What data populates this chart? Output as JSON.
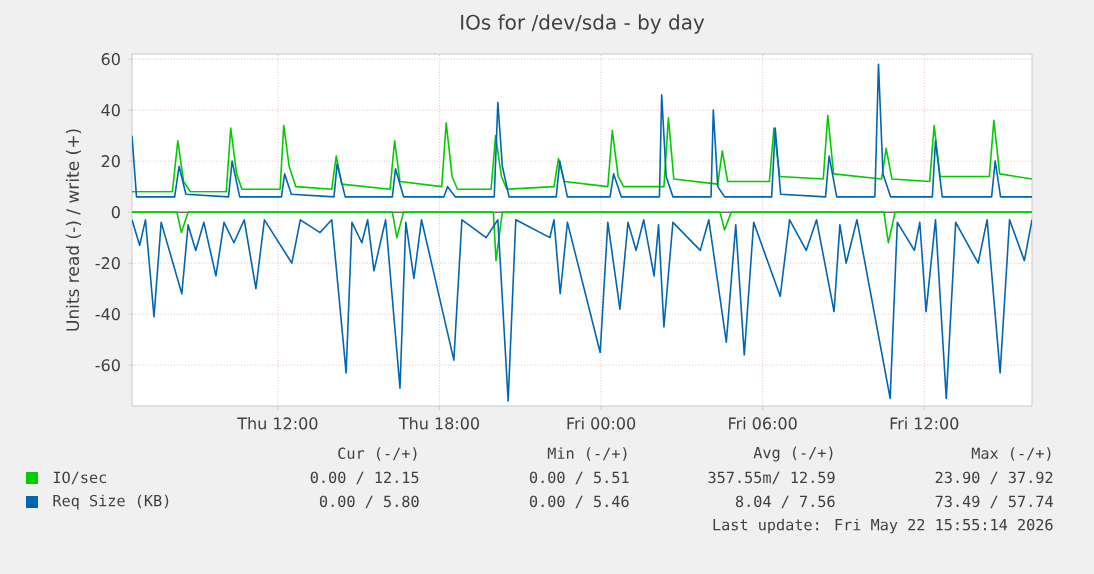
{
  "chart_data": {
    "type": "line",
    "title": "IOs for /dev/sda - by day",
    "ylabel": "Units read (-) / write (+)",
    "xlim": [
      "2026-05-21T06:35",
      "2026-05-22T16:00"
    ],
    "xticks": [
      {
        "value": "2026-05-21T12:00",
        "label": "Thu 12:00"
      },
      {
        "value": "2026-05-21T18:00",
        "label": "Thu 18:00"
      },
      {
        "value": "2026-05-22T00:00",
        "label": "Fri 00:00"
      },
      {
        "value": "2026-05-22T06:00",
        "label": "Fri 06:00"
      },
      {
        "value": "2026-05-22T12:00",
        "label": "Fri 12:00"
      }
    ],
    "ylim": [
      -76,
      62
    ],
    "yticks": [
      -60,
      -40,
      -20,
      0,
      20,
      40,
      60
    ],
    "grid": true,
    "legend": "bottom",
    "ref_lines": [
      {
        "axis": "y",
        "value": 0,
        "color": "#000000"
      }
    ],
    "series": [
      {
        "name": "IO/sec",
        "color": "#00cc00",
        "x": [
          "2026-05-21T06:35",
          "2026-05-21T08:05",
          "2026-05-21T08:17",
          "2026-05-21T08:30",
          "2026-05-21T08:45",
          "2026-05-21T10:05",
          "2026-05-21T10:15",
          "2026-05-21T10:28",
          "2026-05-21T10:40",
          "2026-05-21T12:05",
          "2026-05-21T12:13",
          "2026-05-21T12:25",
          "2026-05-21T12:40",
          "2026-05-21T14:00",
          "2026-05-21T14:10",
          "2026-05-21T14:22",
          "2026-05-21T16:10",
          "2026-05-21T16:20",
          "2026-05-21T16:32",
          "2026-05-21T18:05",
          "2026-05-21T18:15",
          "2026-05-21T18:28",
          "2026-05-21T18:40",
          "2026-05-21T19:55",
          "2026-05-21T20:05",
          "2026-05-21T20:18",
          "2026-05-21T20:30",
          "2026-05-21T22:15",
          "2026-05-21T22:25",
          "2026-05-21T22:38",
          "2026-05-22T00:15",
          "2026-05-22T00:25",
          "2026-05-22T00:38",
          "2026-05-22T00:50",
          "2026-05-22T02:20",
          "2026-05-22T02:30",
          "2026-05-22T02:42",
          "2026-05-22T04:20",
          "2026-05-22T04:30",
          "2026-05-22T04:42",
          "2026-05-22T06:15",
          "2026-05-22T06:25",
          "2026-05-22T06:38",
          "2026-05-22T08:15",
          "2026-05-22T08:25",
          "2026-05-22T08:38",
          "2026-05-22T10:25",
          "2026-05-22T10:35",
          "2026-05-22T10:48",
          "2026-05-22T12:12",
          "2026-05-22T12:22",
          "2026-05-22T12:35",
          "2026-05-22T14:25",
          "2026-05-22T14:35",
          "2026-05-22T14:48",
          "2026-05-22T16:00"
        ],
        "values": [
          8,
          8,
          28,
          12,
          8,
          8,
          33,
          15,
          9,
          9,
          34,
          18,
          10,
          9,
          22,
          11,
          9,
          28,
          12,
          10,
          35,
          14,
          9,
          9,
          30,
          14,
          9,
          10,
          21,
          12,
          10,
          32,
          14,
          10,
          10,
          37,
          13,
          11,
          24,
          12,
          12,
          33,
          14,
          13,
          38,
          15,
          13,
          25,
          13,
          12,
          34,
          14,
          14,
          36,
          15,
          13
        ]
      },
      {
        "color": "#00cc00",
        "x": [
          "2026-05-21T06:35",
          "2026-05-21T08:15",
          "2026-05-21T08:25",
          "2026-05-21T08:40",
          "2026-05-21T16:15",
          "2026-05-21T16:25",
          "2026-05-21T16:40",
          "2026-05-21T20:00",
          "2026-05-21T20:06",
          "2026-05-21T20:20",
          "2026-05-22T04:25",
          "2026-05-22T04:35",
          "2026-05-22T04:50",
          "2026-05-22T10:30",
          "2026-05-22T10:40",
          "2026-05-22T10:55",
          "2026-05-22T16:00"
        ],
        "values": [
          0,
          0,
          -8,
          0,
          0,
          -10,
          0,
          0,
          -19,
          0,
          0,
          -7,
          0,
          0,
          -12,
          0,
          0
        ]
      },
      {
        "name": "Req Size (KB)",
        "color": "#0066b3",
        "x": [
          "2026-05-21T06:35",
          "2026-05-21T06:45",
          "2026-05-21T08:10",
          "2026-05-21T08:20",
          "2026-05-21T08:35",
          "2026-05-21T10:10",
          "2026-05-21T10:18",
          "2026-05-21T10:35",
          "2026-05-21T12:08",
          "2026-05-21T12:15",
          "2026-05-21T12:30",
          "2026-05-21T14:05",
          "2026-05-21T14:12",
          "2026-05-21T14:30",
          "2026-05-21T16:15",
          "2026-05-21T16:22",
          "2026-05-21T16:40",
          "2026-05-21T18:10",
          "2026-05-21T18:18",
          "2026-05-21T18:35",
          "2026-05-21T20:02",
          "2026-05-21T20:10",
          "2026-05-21T20:20",
          "2026-05-21T20:35",
          "2026-05-21T22:20",
          "2026-05-21T22:28",
          "2026-05-21T22:45",
          "2026-05-22T00:20",
          "2026-05-22T00:28",
          "2026-05-22T00:45",
          "2026-05-22T02:10",
          "2026-05-22T02:15",
          "2026-05-22T02:25",
          "2026-05-22T02:40",
          "2026-05-22T04:05",
          "2026-05-22T04:10",
          "2026-05-22T04:20",
          "2026-05-22T04:35",
          "2026-05-22T06:20",
          "2026-05-22T06:28",
          "2026-05-22T06:40",
          "2026-05-22T08:20",
          "2026-05-22T08:28",
          "2026-05-22T08:45",
          "2026-05-22T10:10",
          "2026-05-22T10:18",
          "2026-05-22T10:28",
          "2026-05-22T10:45",
          "2026-05-22T12:18",
          "2026-05-22T12:25",
          "2026-05-22T12:40",
          "2026-05-22T14:30",
          "2026-05-22T14:38",
          "2026-05-22T14:50",
          "2026-05-22T16:00"
        ],
        "values": [
          30,
          6,
          6,
          18,
          7,
          6,
          20,
          6,
          6,
          15,
          7,
          6,
          19,
          6,
          6,
          17,
          6,
          6,
          10,
          6,
          6,
          43,
          18,
          6,
          6,
          20,
          6,
          6,
          15,
          6,
          6,
          46,
          14,
          6,
          6,
          40,
          10,
          6,
          6,
          33,
          7,
          6,
          22,
          6,
          6,
          58,
          15,
          6,
          6,
          28,
          6,
          6,
          20,
          6,
          6
        ]
      },
      {
        "color": "#0066b3",
        "x": [
          "2026-05-21T06:35",
          "2026-05-21T06:52",
          "2026-05-21T07:05",
          "2026-05-21T07:24",
          "2026-05-21T07:40",
          "2026-05-21T08:26",
          "2026-05-21T08:40",
          "2026-05-21T08:57",
          "2026-05-21T09:15",
          "2026-05-21T09:42",
          "2026-05-21T10:00",
          "2026-05-21T10:22",
          "2026-05-21T10:45",
          "2026-05-21T11:11",
          "2026-05-21T11:30",
          "2026-05-21T12:31",
          "2026-05-21T12:50",
          "2026-05-21T13:34",
          "2026-05-21T14:00",
          "2026-05-21T14:32",
          "2026-05-21T14:45",
          "2026-05-21T15:07",
          "2026-05-21T15:20",
          "2026-05-21T15:34",
          "2026-05-21T16:00",
          "2026-05-21T16:32",
          "2026-05-21T16:45",
          "2026-05-21T17:03",
          "2026-05-21T17:20",
          "2026-05-21T18:32",
          "2026-05-21T18:50",
          "2026-05-21T19:44",
          "2026-05-21T20:10",
          "2026-05-21T20:33",
          "2026-05-21T20:50",
          "2026-05-21T22:06",
          "2026-05-21T22:15",
          "2026-05-21T22:29",
          "2026-05-21T22:45",
          "2026-05-21T23:58",
          "2026-05-22T00:15",
          "2026-05-22T00:42",
          "2026-05-22T01:00",
          "2026-05-22T01:18",
          "2026-05-22T01:35",
          "2026-05-22T01:58",
          "2026-05-22T02:08",
          "2026-05-22T02:20",
          "2026-05-22T02:40",
          "2026-05-22T03:41",
          "2026-05-22T04:00",
          "2026-05-22T04:39",
          "2026-05-22T05:00",
          "2026-05-22T05:19",
          "2026-05-22T05:40",
          "2026-05-22T06:39",
          "2026-05-22T07:00",
          "2026-05-22T07:37",
          "2026-05-22T08:00",
          "2026-05-22T08:39",
          "2026-05-22T08:52",
          "2026-05-22T09:06",
          "2026-05-22T09:30",
          "2026-05-22T10:44",
          "2026-05-22T11:00",
          "2026-05-22T11:38",
          "2026-05-22T11:50",
          "2026-05-22T12:04",
          "2026-05-22T12:25",
          "2026-05-22T12:49",
          "2026-05-22T13:10",
          "2026-05-22T14:00",
          "2026-05-22T14:20",
          "2026-05-22T14:49",
          "2026-05-22T15:10",
          "2026-05-22T15:43",
          "2026-05-22T16:00"
        ],
        "values": [
          -3,
          -13,
          -3,
          -41,
          -4,
          -32,
          -5,
          -15,
          -4,
          -25,
          -4,
          -12,
          -3,
          -30,
          -3,
          -20,
          -3,
          -8,
          -3,
          -63,
          -4,
          -12,
          -3,
          -23,
          -3,
          -69,
          -4,
          -26,
          -3,
          -58,
          -3,
          -10,
          -3,
          -74,
          -3,
          -10,
          -3,
          -32,
          -4,
          -55,
          -4,
          -38,
          -4,
          -15,
          -3,
          -25,
          -5,
          -45,
          -4,
          -15,
          -3,
          -51,
          -5,
          -56,
          -4,
          -33,
          -3,
          -15,
          -3,
          -39,
          -5,
          -20,
          -3,
          -73,
          -4,
          -15,
          -4,
          -39,
          -3,
          -73,
          -4,
          -20,
          -3,
          -63,
          -3,
          -19,
          -3
        ]
      }
    ],
    "annotations": [
      "Cur (-/+)",
      "Min (-/+)",
      "Avg (-/+)",
      "Max (-/+)",
      "0.00 / 12.15",
      "0.00 / 5.51",
      "357.55m/ 12.59",
      "23.90 / 37.92",
      "0.00 / 5.80",
      "0.00 / 5.46",
      "8.04 / 7.56",
      "73.49 / 57.74",
      "Last update: Fri May 22 15:55:14 2026"
    ]
  }
}
